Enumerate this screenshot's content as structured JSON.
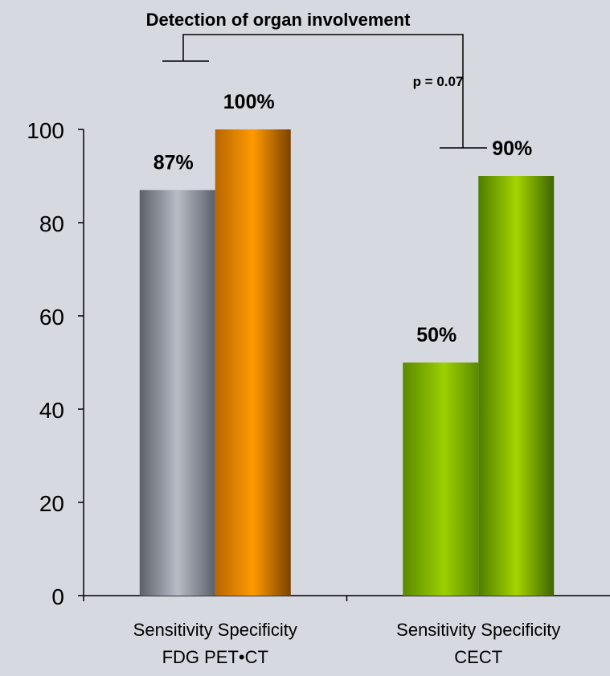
{
  "chart_data": {
    "type": "bar",
    "title": "Detection of organ involvement",
    "ylim": [
      0,
      100
    ],
    "y_ticks": [
      0,
      20,
      40,
      60,
      80,
      100
    ],
    "grid": false,
    "groups": [
      {
        "name": "FDG PET•CT",
        "bar_labels": "Sensitivity Specificity",
        "bars": [
          {
            "metric": "Sensitivity",
            "value": 87,
            "label": "87%",
            "color": "#9aa0ab"
          },
          {
            "metric": "Specificity",
            "value": 100,
            "label": "100%",
            "color": "#f79700"
          }
        ]
      },
      {
        "name": "CECT",
        "bar_labels": "Sensitivity Specificity",
        "bars": [
          {
            "metric": "Sensitivity",
            "value": 50,
            "label": "50%",
            "color": "#8fbf00"
          },
          {
            "metric": "Specificity",
            "value": 90,
            "label": "90%",
            "color": "#8fbf00"
          }
        ]
      }
    ],
    "annotations": [
      {
        "text": "p = 0.07"
      }
    ]
  },
  "colors": {
    "background": "#d6d9e0",
    "axis": "#000000"
  }
}
